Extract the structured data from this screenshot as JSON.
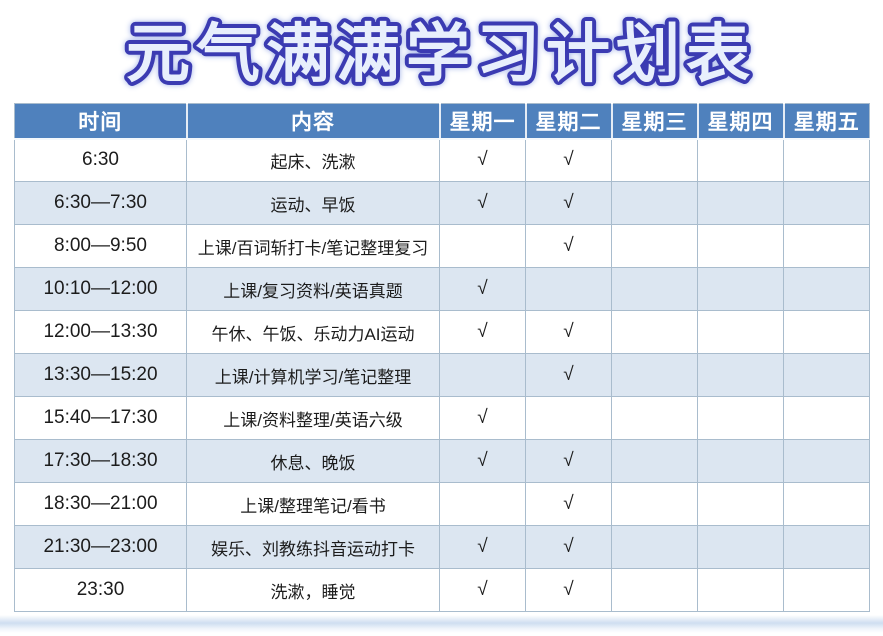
{
  "title": "元气满满学习计划表",
  "check_symbol": "√",
  "table": {
    "headers": [
      "时间",
      "内容",
      "星期一",
      "星期二",
      "星期三",
      "星期四",
      "星期五"
    ],
    "rows": [
      {
        "time": "6:30",
        "content": "起床、洗漱",
        "cells": [
          "√",
          "√",
          "",
          "",
          ""
        ]
      },
      {
        "time": "6:30—7:30",
        "content": "运动、早饭",
        "cells": [
          "√",
          "√",
          "",
          "",
          ""
        ]
      },
      {
        "time": "8:00—9:50",
        "content": "上课/百词斩打卡/笔记整理复习",
        "cells": [
          "",
          "√",
          "",
          "",
          ""
        ]
      },
      {
        "time": "10:10—12:00",
        "content": "上课/复习资料/英语真题",
        "cells": [
          "√",
          "",
          "",
          "",
          ""
        ]
      },
      {
        "time": "12:00—13:30",
        "content": "午休、午饭、乐动力AI运动",
        "cells": [
          "√",
          "√",
          "",
          "",
          ""
        ]
      },
      {
        "time": "13:30—15:20",
        "content": "上课/计算机学习/笔记整理",
        "cells": [
          "",
          "√",
          "",
          "",
          ""
        ]
      },
      {
        "time": "15:40—17:30",
        "content": "上课/资料整理/英语六级",
        "cells": [
          "√",
          "",
          "",
          "",
          ""
        ]
      },
      {
        "time": "17:30—18:30",
        "content": "休息、晚饭",
        "cells": [
          "√",
          "√",
          "",
          "",
          ""
        ]
      },
      {
        "time": "18:30—21:00",
        "content": "上课/整理笔记/看书",
        "cells": [
          "",
          "√",
          "",
          "",
          ""
        ]
      },
      {
        "time": "21:30—23:00",
        "content": "娱乐、刘教练抖音运动打卡",
        "cells": [
          "√",
          "√",
          "",
          "",
          ""
        ]
      },
      {
        "time": "23:30",
        "content": "洗漱，睡觉",
        "cells": [
          "√",
          "√",
          "",
          "",
          ""
        ]
      }
    ]
  },
  "colors": {
    "header_bg": "#4f81bd",
    "alt_row_bg": "#dce6f1",
    "border": "#a9bccd",
    "header_text": "#ffffff",
    "title_fill": "#e8effc",
    "title_outline": "#3b3bb2",
    "title_glow": "#9fb0e8",
    "body_text": "#1c1c1c"
  }
}
